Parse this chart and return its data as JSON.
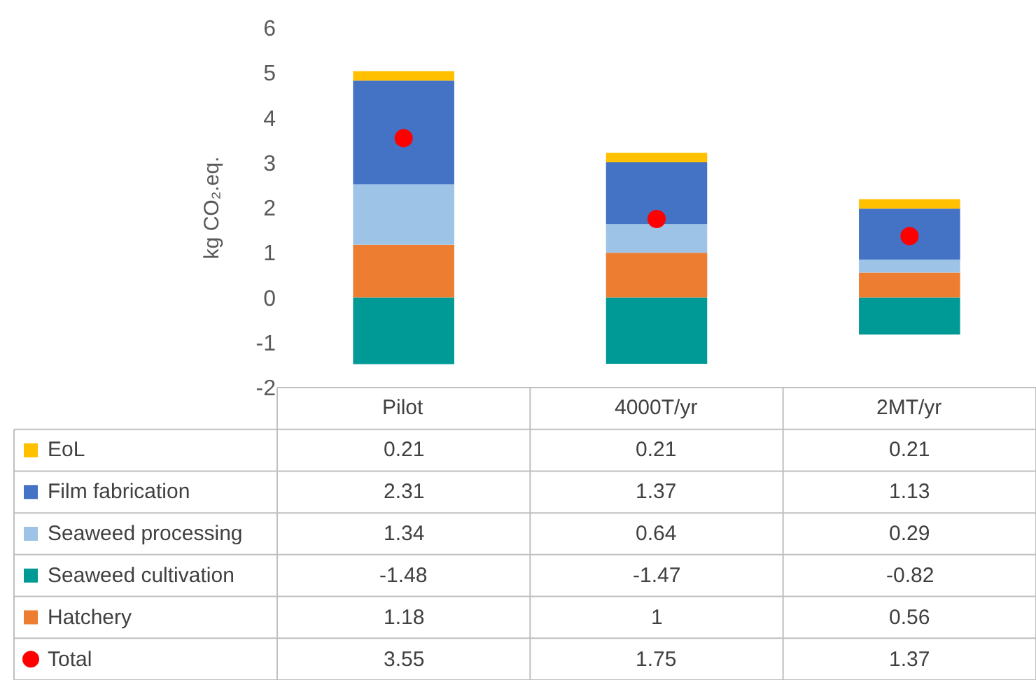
{
  "chart_data": {
    "type": "bar",
    "stacked": true,
    "ylabel": "kg CO₂.eq.",
    "categories": [
      "Pilot",
      "4000T/yr",
      "2MT/yr"
    ],
    "ylim": [
      -2,
      6
    ],
    "yticks": [
      -2,
      -1,
      0,
      1,
      2,
      3,
      4,
      5,
      6
    ],
    "grid": false,
    "data_labels": true,
    "legend": "bottom",
    "series": [
      {
        "name": "Hatchery",
        "color": "#ed7d31",
        "values": [
          1.18,
          1,
          0.56
        ]
      },
      {
        "name": "Seaweed cultivation",
        "color": "#009a96",
        "values": [
          -1.48,
          -1.47,
          -0.82
        ]
      },
      {
        "name": "Seaweed processing",
        "color": "#9dc3e6",
        "values": [
          1.34,
          0.64,
          0.29
        ]
      },
      {
        "name": "Film fabrication",
        "color": "#4472c4",
        "values": [
          2.31,
          1.37,
          1.13
        ]
      },
      {
        "name": "EoL",
        "color": "#ffc000",
        "values": [
          0.21,
          0.21,
          0.21
        ]
      },
      {
        "name": "Total",
        "color": "#ff0000",
        "type": "scatter",
        "marker": "circle",
        "values": [
          3.55,
          1.75,
          1.37
        ]
      }
    ]
  }
}
